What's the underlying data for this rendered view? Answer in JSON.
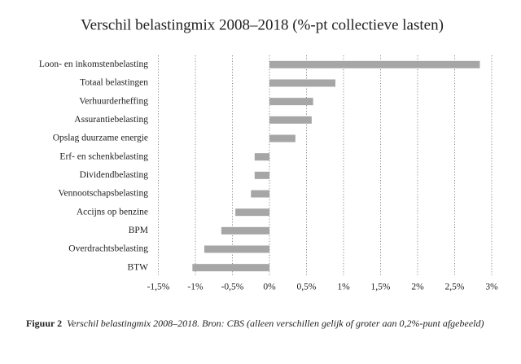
{
  "chart_data": {
    "type": "barh",
    "title": "Verschil belastingmix 2008–2018 (%-pt collectieve lasten)",
    "categories": [
      "Loon- en inkomstenbelasting",
      "Totaal belastingen",
      "Verhuurderheffing",
      "Assurantiebelasting",
      "Opslag duurzame energie",
      "Erf- en schenkbelasting",
      "Dividendbelasting",
      "Vennootschapsbelasting",
      "Accijns op benzine",
      "BPM",
      "Overdrachtsbelasting",
      "BTW"
    ],
    "values": [
      2.84,
      0.89,
      0.59,
      0.57,
      0.35,
      -0.2,
      -0.2,
      -0.25,
      -0.46,
      -0.65,
      -0.88,
      -1.04
    ],
    "color": "#a6a6a6",
    "xlim": [
      -1.5,
      3
    ],
    "xticks": [
      {
        "value": -1.5,
        "label": "-1,5%"
      },
      {
        "value": -1,
        "label": "-1%"
      },
      {
        "value": -0.5,
        "label": "-0,5%"
      },
      {
        "value": 0,
        "label": "0%"
      },
      {
        "value": 0.5,
        "label": "0,5%"
      },
      {
        "value": 1,
        "label": "1%"
      },
      {
        "value": 1.5,
        "label": "1,5%"
      },
      {
        "value": 2,
        "label": "2%"
      },
      {
        "value": 2.5,
        "label": "2,5%"
      },
      {
        "value": 3,
        "label": "3%"
      }
    ],
    "grid": true,
    "caption_label": "Figuur 2",
    "caption": "Verschil belastingmix 2008–2018. Bron: CBS (alleen verschillen gelijk of groter aan 0,2%-punt afgebeeld)"
  }
}
